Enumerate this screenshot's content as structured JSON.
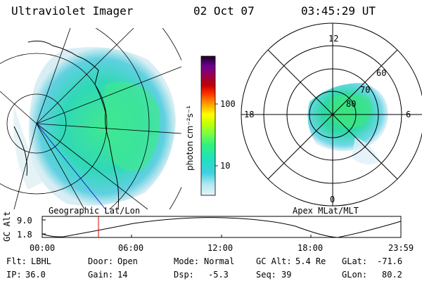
{
  "header": {
    "instrument": "Ultraviolet Imager",
    "date": "02 Oct 07",
    "time": "03:45:29 UT"
  },
  "panels": {
    "left_label": "Geographic Lat/Lon",
    "right_label": "Apex MLat/MLT"
  },
  "colorbar": {
    "label": "photon cm⁻²s⁻¹",
    "ticks": [
      "100",
      "10"
    ],
    "scale": "log",
    "colors": [
      "#1a0020",
      "#3a0060",
      "#6b0090",
      "#9a0050",
      "#c00000",
      "#ff3000",
      "#ff8000",
      "#ffc000",
      "#ffff00",
      "#c8ff00",
      "#80ff40",
      "#30f080",
      "#20e0c0",
      "#40d0e0",
      "#b0e8f0",
      "#e8f4f8"
    ]
  },
  "polar": {
    "mlt_labels": [
      "12",
      "18",
      "6",
      "0"
    ],
    "mlat_labels": [
      "60",
      "70",
      "80"
    ]
  },
  "altitude_plot": {
    "axis_label": "GC Alt",
    "y_ticks": [
      "9.0",
      "1.8"
    ],
    "x_ticks": [
      "00:00",
      "06:00",
      "12:00",
      "18:00",
      "23:59"
    ],
    "current_time_color": "#e00000"
  },
  "status": {
    "row1": [
      {
        "label": "Flt:",
        "value": "LBHL"
      },
      {
        "label": "Door:",
        "value": "Open"
      },
      {
        "label": "Mode:",
        "value": "Normal"
      },
      {
        "label": "GC Alt:",
        "value": "5.4 Re"
      },
      {
        "label": "GLat:",
        "value": "-71.6"
      }
    ],
    "row2": [
      {
        "label": "IP:",
        "value": "36.0"
      },
      {
        "label": "Gain:",
        "value": "14"
      },
      {
        "label": "Dsp:",
        "value": "-5.3"
      },
      {
        "label": "Seq:",
        "value": "39"
      },
      {
        "label": "GLon:",
        "value": "80.2"
      }
    ]
  }
}
